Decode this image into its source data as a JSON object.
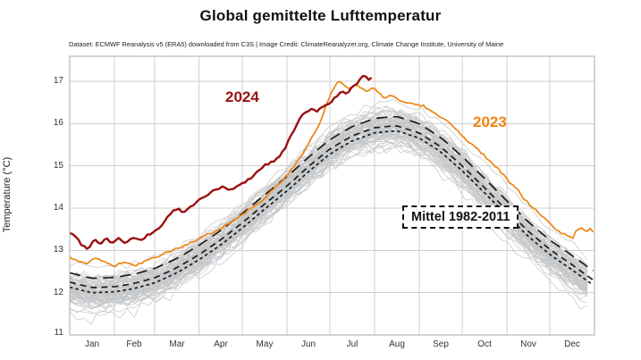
{
  "title": "Global gemittelte Lufttemperatur",
  "subtitle": "Dataset: ECMWF Reanalysis v5 (ERA5) downloaded from C3S | Image Credit: ClimateReanalyzer.org, Climate Change Institute, University of Maine",
  "annotations": {
    "label_2024": "2024",
    "label_2023": "2023",
    "mean_box_label": "Mittel 1982-2011"
  },
  "colors": {
    "series_2024": "#9b1010",
    "series_2023": "#ee8512",
    "ensemble_gray": "#c7c7c7",
    "ensemble_blue": "#b5cbdf",
    "reference_dash": "#1c1c1c",
    "grid": "#cfcfcf",
    "plot_border": "#aaaaaa"
  },
  "chart_data": {
    "type": "line",
    "title": "Global gemittelte Lufttemperatur",
    "xlabel": "",
    "ylabel": "Temperature (°C)",
    "ylim": [
      11,
      17.59
    ],
    "yticks": [
      11,
      12,
      13,
      14,
      15,
      16,
      17
    ],
    "months": [
      "Jan",
      "Feb",
      "Mar",
      "Apr",
      "May",
      "Jun",
      "Jul",
      "Aug",
      "Sep",
      "Oct",
      "Nov",
      "Dec"
    ],
    "grid": true,
    "legend_position": "inline-annotations",
    "series": [
      {
        "name": "2024",
        "color": "#9b1010",
        "width": 2.4,
        "points_day_degC": [
          [
            0,
            13.42
          ],
          [
            5,
            13.3
          ],
          [
            9,
            13.1
          ],
          [
            13,
            13.05
          ],
          [
            17,
            13.27
          ],
          [
            21,
            13.15
          ],
          [
            25,
            13.3
          ],
          [
            29,
            13.18
          ],
          [
            34,
            13.28
          ],
          [
            39,
            13.17
          ],
          [
            44,
            13.3
          ],
          [
            49,
            13.22
          ],
          [
            54,
            13.35
          ],
          [
            59,
            13.45
          ],
          [
            63,
            13.55
          ],
          [
            67,
            13.75
          ],
          [
            71,
            13.9
          ],
          [
            75,
            14.0
          ],
          [
            79,
            13.88
          ],
          [
            83,
            14.0
          ],
          [
            87,
            14.1
          ],
          [
            91,
            14.22
          ],
          [
            96,
            14.33
          ],
          [
            101,
            14.42
          ],
          [
            106,
            14.5
          ],
          [
            111,
            14.42
          ],
          [
            116,
            14.5
          ],
          [
            121,
            14.6
          ],
          [
            126,
            14.72
          ],
          [
            131,
            14.88
          ],
          [
            136,
            15.02
          ],
          [
            141,
            15.1
          ],
          [
            146,
            15.22
          ],
          [
            151,
            15.5
          ],
          [
            156,
            15.85
          ],
          [
            160,
            16.1
          ],
          [
            164,
            16.28
          ],
          [
            168,
            16.35
          ],
          [
            172,
            16.28
          ],
          [
            176,
            16.4
          ],
          [
            181,
            16.5
          ],
          [
            185,
            16.62
          ],
          [
            189,
            16.75
          ],
          [
            193,
            16.68
          ],
          [
            197,
            16.88
          ],
          [
            201,
            17.0
          ],
          [
            204,
            17.12
          ],
          [
            207,
            17.08
          ],
          [
            209,
            17.02
          ],
          [
            211,
            17.1
          ]
        ]
      },
      {
        "name": "2023",
        "color": "#ee8512",
        "width": 1.7,
        "points_day_degC": [
          [
            0,
            12.85
          ],
          [
            6,
            12.75
          ],
          [
            12,
            12.7
          ],
          [
            18,
            12.83
          ],
          [
            24,
            12.72
          ],
          [
            31,
            12.63
          ],
          [
            38,
            12.72
          ],
          [
            45,
            12.63
          ],
          [
            52,
            12.73
          ],
          [
            59,
            12.82
          ],
          [
            66,
            12.93
          ],
          [
            73,
            13.02
          ],
          [
            80,
            13.12
          ],
          [
            87,
            13.22
          ],
          [
            92,
            13.3
          ],
          [
            99,
            13.42
          ],
          [
            106,
            13.55
          ],
          [
            113,
            13.68
          ],
          [
            120,
            13.85
          ],
          [
            127,
            14.02
          ],
          [
            134,
            14.2
          ],
          [
            141,
            14.42
          ],
          [
            148,
            14.65
          ],
          [
            152,
            14.8
          ],
          [
            158,
            15.1
          ],
          [
            163,
            15.35
          ],
          [
            167,
            15.6
          ],
          [
            171,
            15.8
          ],
          [
            175,
            16.1
          ],
          [
            179,
            16.5
          ],
          [
            183,
            16.8
          ],
          [
            187,
            17.0
          ],
          [
            191,
            16.9
          ],
          [
            195,
            16.8
          ],
          [
            199,
            16.95
          ],
          [
            203,
            16.82
          ],
          [
            207,
            16.75
          ],
          [
            211,
            16.85
          ],
          [
            215,
            16.7
          ],
          [
            219,
            16.62
          ],
          [
            223,
            16.66
          ],
          [
            227,
            16.6
          ],
          [
            231,
            16.52
          ],
          [
            236,
            16.5
          ],
          [
            241,
            16.45
          ],
          [
            246,
            16.42
          ],
          [
            251,
            16.3
          ],
          [
            256,
            16.2
          ],
          [
            261,
            16.1
          ],
          [
            266,
            15.95
          ],
          [
            271,
            15.8
          ],
          [
            276,
            15.6
          ],
          [
            281,
            15.5
          ],
          [
            286,
            15.32
          ],
          [
            291,
            15.15
          ],
          [
            296,
            15.0
          ],
          [
            301,
            14.82
          ],
          [
            306,
            14.6
          ],
          [
            311,
            14.45
          ],
          [
            316,
            14.22
          ],
          [
            321,
            14.05
          ],
          [
            326,
            13.9
          ],
          [
            331,
            13.72
          ],
          [
            336,
            13.58
          ],
          [
            341,
            13.42
          ],
          [
            346,
            13.35
          ],
          [
            350,
            13.3
          ],
          [
            353,
            13.5
          ],
          [
            356,
            13.55
          ],
          [
            359,
            13.42
          ],
          [
            362,
            13.5
          ],
          [
            364,
            13.42
          ]
        ]
      }
    ],
    "mean_seasonal_cycle_1982_2011": [
      [
        0,
        12.25
      ],
      [
        15,
        12.12
      ],
      [
        31,
        12.14
      ],
      [
        45,
        12.22
      ],
      [
        59,
        12.35
      ],
      [
        74,
        12.58
      ],
      [
        90,
        12.9
      ],
      [
        105,
        13.25
      ],
      [
        120,
        13.65
      ],
      [
        135,
        14.08
      ],
      [
        151,
        14.52
      ],
      [
        166,
        14.98
      ],
      [
        181,
        15.4
      ],
      [
        196,
        15.7
      ],
      [
        212,
        15.9
      ],
      [
        227,
        15.95
      ],
      [
        243,
        15.78
      ],
      [
        258,
        15.45
      ],
      [
        273,
        15.0
      ],
      [
        288,
        14.5
      ],
      [
        304,
        13.95
      ],
      [
        319,
        13.45
      ],
      [
        334,
        13.02
      ],
      [
        349,
        12.67
      ],
      [
        364,
        12.3
      ]
    ],
    "reference_lines": [
      {
        "name": "mean-upper-long-dash",
        "dash": "12,7",
        "offset_degC": 0.22
      },
      {
        "name": "mean-1982-2011-medium-dash",
        "dash": "7,5",
        "offset_degC": 0
      },
      {
        "name": "mean-lower-short-dash",
        "dash": "3.5,3.2",
        "offset_degC": -0.12
      }
    ],
    "ensemble": {
      "description": "individual historical years (gray spaghetti, ERA5)",
      "count": 78,
      "winter_range_degC": [
        11.3,
        12.8
      ],
      "summer_range_degC": [
        15.2,
        16.5
      ]
    }
  }
}
